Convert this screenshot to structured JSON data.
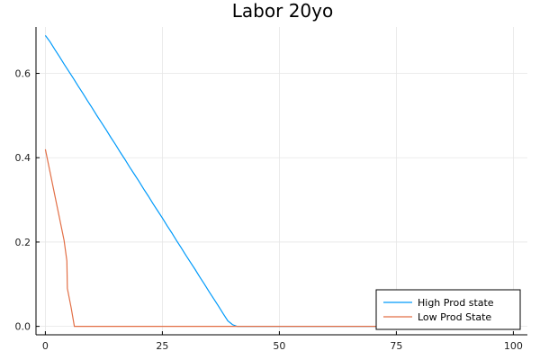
{
  "chart_data": {
    "type": "line",
    "title": "Labor 20yo",
    "xlabel": "",
    "ylabel": "",
    "xlim": [
      -2,
      103
    ],
    "ylim": [
      -0.02,
      0.71
    ],
    "xticks": [
      0,
      25,
      50,
      75,
      100
    ],
    "xtick_labels": [
      "0",
      "25",
      "50",
      "75",
      "100"
    ],
    "yticks": [
      0.0,
      0.2,
      0.4,
      0.6
    ],
    "ytick_labels": [
      "0.0",
      "0.2",
      "0.4",
      "0.6"
    ],
    "grid": true,
    "legend_position": "bottom-right",
    "series": [
      {
        "name": "High Prod state",
        "color": "#009AFA",
        "points": [
          [
            0,
            0.69
          ],
          [
            1,
            0.675
          ],
          [
            2,
            0.657
          ],
          [
            3,
            0.64
          ],
          [
            4,
            0.622
          ],
          [
            5,
            0.605
          ],
          [
            6,
            0.588
          ],
          [
            7,
            0.57
          ],
          [
            8,
            0.553
          ],
          [
            9,
            0.535
          ],
          [
            10,
            0.518
          ],
          [
            11,
            0.5
          ],
          [
            12,
            0.483
          ],
          [
            13,
            0.466
          ],
          [
            14,
            0.448
          ],
          [
            15,
            0.431
          ],
          [
            16,
            0.413
          ],
          [
            17,
            0.396
          ],
          [
            18,
            0.378
          ],
          [
            19,
            0.361
          ],
          [
            20,
            0.344
          ],
          [
            21,
            0.326
          ],
          [
            22,
            0.309
          ],
          [
            23,
            0.291
          ],
          [
            24,
            0.274
          ],
          [
            25,
            0.257
          ],
          [
            26,
            0.239
          ],
          [
            27,
            0.222
          ],
          [
            28,
            0.204
          ],
          [
            29,
            0.187
          ],
          [
            30,
            0.169
          ],
          [
            31,
            0.152
          ],
          [
            32,
            0.135
          ],
          [
            33,
            0.117
          ],
          [
            34,
            0.1
          ],
          [
            35,
            0.082
          ],
          [
            36,
            0.065
          ],
          [
            37,
            0.048
          ],
          [
            38,
            0.03
          ],
          [
            39,
            0.013
          ],
          [
            40,
            0.004
          ],
          [
            41,
            0.0
          ],
          [
            42,
            0.0
          ],
          [
            43,
            0.0
          ],
          [
            44,
            0.0
          ],
          [
            45,
            0.0
          ],
          [
            46,
            0.0
          ],
          [
            47,
            0.0
          ],
          [
            48,
            0.0
          ],
          [
            50,
            0.0
          ],
          [
            60,
            0.0
          ],
          [
            70,
            0.0
          ],
          [
            80,
            0.0
          ],
          [
            90,
            0.0
          ],
          [
            100,
            0.0
          ]
        ]
      },
      {
        "name": "Low Prod State",
        "color": "#E26F46",
        "points": [
          [
            0,
            0.42
          ],
          [
            1,
            0.366
          ],
          [
            2,
            0.312
          ],
          [
            3,
            0.258
          ],
          [
            4,
            0.204
          ],
          [
            4.6,
            0.155
          ],
          [
            4.7,
            0.09
          ],
          [
            5.5,
            0.045
          ],
          [
            6.2,
            0.0
          ],
          [
            10,
            0.0
          ],
          [
            20,
            0.0
          ],
          [
            30,
            0.0
          ],
          [
            40,
            0.0
          ],
          [
            50,
            0.0
          ],
          [
            60,
            0.0
          ],
          [
            70,
            0.0
          ],
          [
            80,
            0.0
          ],
          [
            90,
            0.0
          ],
          [
            100,
            0.0
          ]
        ]
      }
    ]
  }
}
